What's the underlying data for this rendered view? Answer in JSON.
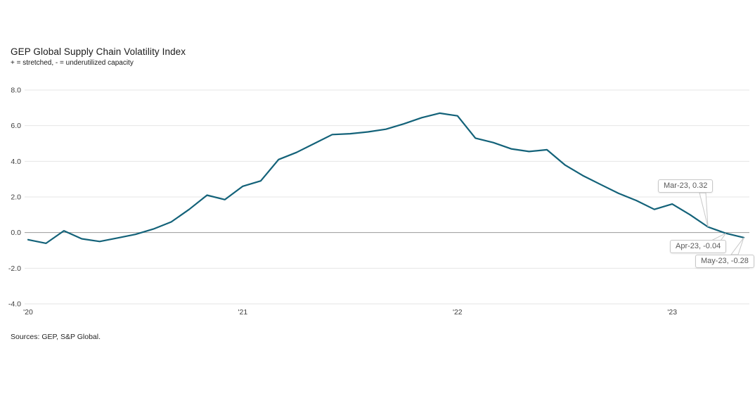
{
  "page": {
    "title": "GEP Global Supply Chain Volatility Index",
    "subtitle": "+ = stretched, - = underutilized capacity",
    "source": "Sources: GEP, S&P Global."
  },
  "chart_data": {
    "type": "line",
    "title": "GEP Global Supply Chain Volatility Index",
    "subtitle": "+ = stretched, - = underutilized capacity",
    "x": [
      "Jan-20",
      "Feb-20",
      "Mar-20",
      "Apr-20",
      "May-20",
      "Jun-20",
      "Jul-20",
      "Aug-20",
      "Sep-20",
      "Oct-20",
      "Nov-20",
      "Dec-20",
      "Jan-21",
      "Feb-21",
      "Mar-21",
      "Apr-21",
      "May-21",
      "Jun-21",
      "Jul-21",
      "Aug-21",
      "Sep-21",
      "Oct-21",
      "Nov-21",
      "Dec-21",
      "Jan-22",
      "Feb-22",
      "Mar-22",
      "Apr-22",
      "May-22",
      "Jun-22",
      "Jul-22",
      "Aug-22",
      "Sep-22",
      "Oct-22",
      "Nov-22",
      "Dec-22",
      "Jan-23",
      "Feb-23",
      "Mar-23",
      "Apr-23",
      "May-23"
    ],
    "values": [
      -0.4,
      -0.6,
      0.1,
      -0.35,
      -0.5,
      -0.3,
      -0.1,
      0.2,
      0.6,
      1.3,
      2.1,
      1.85,
      2.6,
      2.9,
      4.1,
      4.5,
      5.0,
      5.5,
      5.55,
      5.65,
      5.8,
      6.1,
      6.45,
      6.7,
      6.55,
      5.3,
      5.05,
      4.7,
      4.55,
      4.65,
      3.8,
      3.2,
      2.7,
      2.2,
      1.8,
      1.3,
      1.6,
      1.0,
      0.32,
      -0.04,
      -0.28
    ],
    "x_tick_labels": [
      "'20",
      "'21",
      "'22",
      "'23"
    ],
    "x_tick_month_indices": [
      0,
      12,
      24,
      36
    ],
    "y_ticks": [
      8.0,
      6.0,
      4.0,
      2.0,
      0.0,
      -2.0,
      -4.0
    ],
    "ylim": [
      -4.0,
      8.0
    ],
    "grid": true,
    "legend": "none",
    "line_color": "#136279",
    "grid_color": "#e4e4e4",
    "zero_line_color": "#9a9a9a",
    "annotations": [
      {
        "label": "Mar-23, 0.32",
        "month_index": 38,
        "value": 0.32
      },
      {
        "label": "Apr-23, -0.04",
        "month_index": 39,
        "value": -0.04
      },
      {
        "label": "May-23, -0.28",
        "month_index": 40,
        "value": -0.28
      }
    ]
  }
}
